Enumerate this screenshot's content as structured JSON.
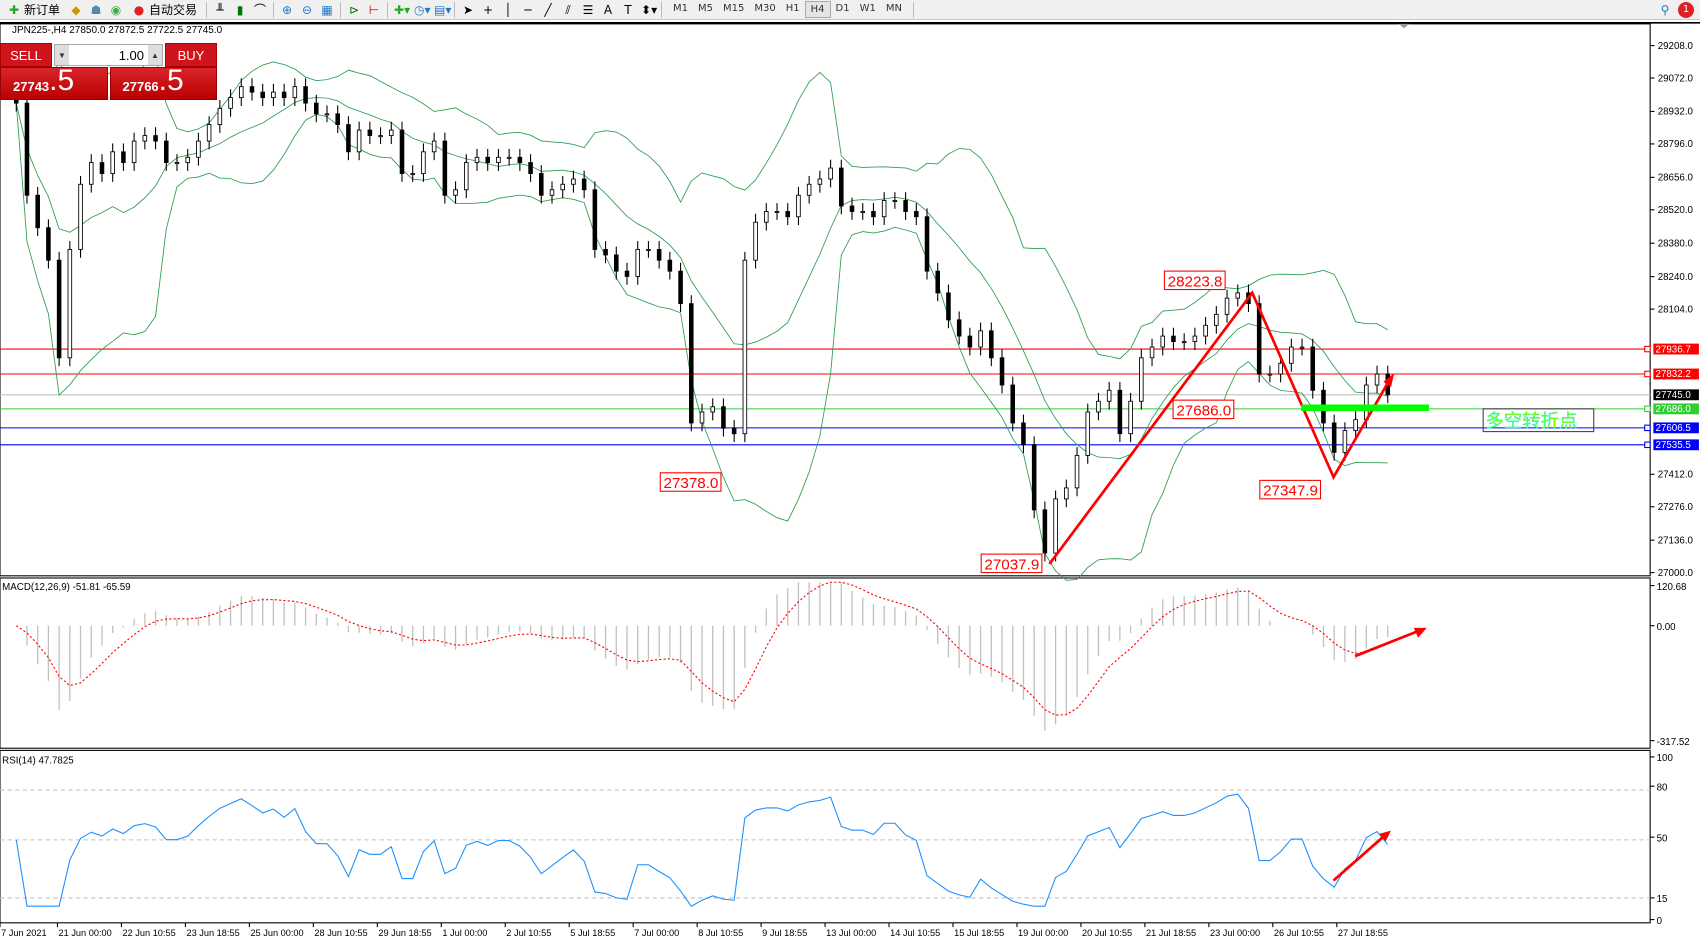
{
  "toolbar": {
    "new_order": "新订单",
    "auto_trading": "自动交易",
    "timeframes": [
      "M1",
      "M5",
      "M15",
      "M30",
      "H1",
      "H4",
      "D1",
      "W1",
      "MN"
    ],
    "selected_timeframe": "H4",
    "notification_count": "1"
  },
  "symbol_info": "JPN225-,H4  27850.0 27872.5 27722.5 27745.0",
  "one_click": {
    "sell_label": "SELL",
    "buy_label": "BUY",
    "lot": "1.00",
    "sell_small": "27743",
    "sell_big": ".5",
    "buy_small": "27766",
    "buy_big": ".5"
  },
  "price_axis": [
    "29208.0",
    "29072.0",
    "28932.0",
    "28796.0",
    "28656.0",
    "28520.0",
    "28380.0",
    "28240.0",
    "28104.0",
    "27412.0",
    "27276.0",
    "27136.0",
    "27000.0"
  ],
  "levels": [
    {
      "price": 27936.7,
      "label": "27936.7",
      "color": "#ff0000"
    },
    {
      "price": 27832.2,
      "label": "27832.2",
      "color": "#ff0000"
    },
    {
      "price": 27745.0,
      "label": "27745.0",
      "color": "#000000",
      "line": "#c0c0c0"
    },
    {
      "price": 27686.0,
      "label": "27686.0",
      "color": "#32cd32"
    },
    {
      "price": 27606.5,
      "label": "27606.5",
      "color": "#0000ff"
    },
    {
      "price": 27535.5,
      "label": "27535.5",
      "color": "#0000ff"
    }
  ],
  "annotations": [
    {
      "price": 28223.8,
      "label": "28223.8"
    },
    {
      "price": 27686.0,
      "label": "27686.0"
    },
    {
      "price": 27347.9,
      "label": "27347.9"
    },
    {
      "price": 27378.0,
      "label": "27378.0"
    },
    {
      "price": 27037.9,
      "label": "27037.9"
    }
  ],
  "turning_point_text": "多空转折点",
  "macd": {
    "header": "MACD(12,26,9) -51.81 -65.59",
    "axis": [
      "120.68",
      "0.00",
      "-317.52"
    ]
  },
  "rsi": {
    "header": "RSI(14) 47.7825",
    "axis": [
      "100",
      "80",
      "50",
      "15",
      "0"
    ]
  },
  "time_axis": [
    "7 Jun 2021",
    "21 Jun 00:00",
    "22 Jun 10:55",
    "23 Jun 18:55",
    "25 Jun 00:00",
    "28 Jun 10:55",
    "29 Jun 18:55",
    "1 Jul 00:00",
    "2 Jul 10:55",
    "5 Jul 18:55",
    "7 Jul 00:00",
    "8 Jul 10:55",
    "9 Jul 18:55",
    "13 Jul 00:00",
    "14 Jul 10:55",
    "15 Jul 18:55",
    "19 Jul 00:00",
    "20 Jul 10:55",
    "21 Jul 18:55",
    "23 Jul 00:00",
    "26 Jul 10:55",
    "27 Jul 18:55"
  ],
  "colors": {
    "bands": "#2e9e4f",
    "macd_hist": "#c0c0c0",
    "macd_signal": "#ff0000",
    "rsi": "#1e90ff",
    "arrows": "#ff0000"
  },
  "chart_data": {
    "type": "candlestick",
    "closes": [
      28967,
      28581,
      28445,
      28309,
      27900,
      28354,
      28627,
      28718,
      28672,
      28763,
      28718,
      28808,
      28831,
      28808,
      28718,
      28718,
      28740,
      28808,
      28877,
      28945,
      28990,
      29036,
      29013,
      28990,
      29013,
      28990,
      29036,
      28967,
      28922,
      28922,
      28877,
      28763,
      28854,
      28831,
      28831,
      28854,
      28672,
      28672,
      28763,
      28808,
      28581,
      28604,
      28718,
      28740,
      28718,
      28740,
      28740,
      28718,
      28672,
      28581,
      28604,
      28627,
      28649,
      28604,
      28354,
      28331,
      28263,
      28241,
      28354,
      28354,
      28309,
      28263,
      28127,
      27627,
      27673,
      27695,
      27605,
      27582,
      28309,
      28468,
      28513,
      28513,
      28491,
      28581,
      28627,
      28649,
      28695,
      28536,
      28513,
      28513,
      28491,
      28559,
      28559,
      28513,
      28491,
      28263,
      28172,
      28059,
      27991,
      27945,
      28013,
      27900,
      27786,
      27627,
      27536,
      27263,
      27082,
      27309,
      27355,
      27491,
      27673,
      27718,
      27764,
      27582,
      27718,
      27900,
      27945,
      27991,
      27968,
      27968,
      27991,
      28036,
      28082,
      28150,
      28172,
      28127,
      27832,
      27832,
      27877,
      27945,
      27945,
      27764,
      27627,
      27504,
      27595,
      27641,
      27786,
      27832,
      27745
    ]
  }
}
